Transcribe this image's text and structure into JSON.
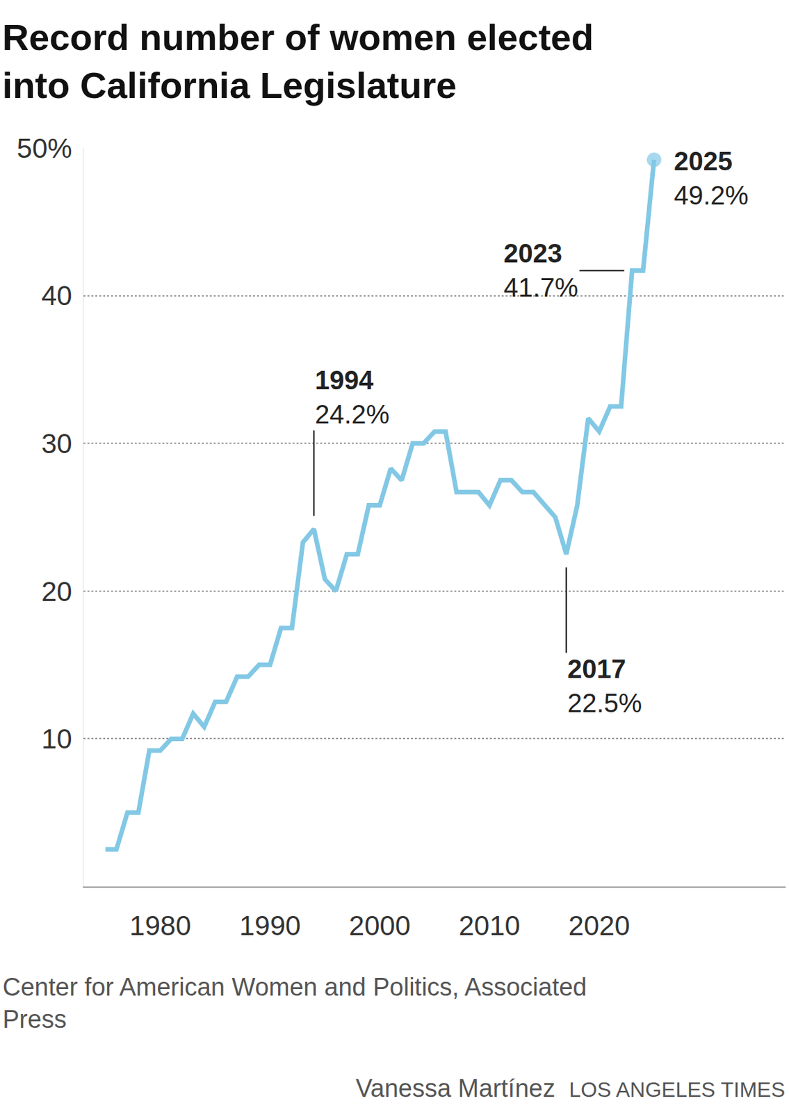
{
  "chart_data": {
    "type": "line",
    "title": "Record number of women elected\ninto California Legislature",
    "x": [
      1975,
      1976,
      1977,
      1978,
      1979,
      1980,
      1981,
      1982,
      1983,
      1984,
      1985,
      1986,
      1987,
      1988,
      1989,
      1990,
      1991,
      1992,
      1993,
      1994,
      1995,
      1996,
      1997,
      1998,
      1999,
      2000,
      2001,
      2002,
      2003,
      2004,
      2005,
      2006,
      2007,
      2008,
      2009,
      2010,
      2011,
      2012,
      2013,
      2014,
      2015,
      2016,
      2017,
      2018,
      2019,
      2020,
      2021,
      2022,
      2023,
      2024,
      2025
    ],
    "values": [
      2.5,
      2.5,
      5.0,
      5.0,
      9.2,
      9.2,
      10.0,
      10.0,
      11.7,
      10.8,
      12.5,
      12.5,
      14.2,
      14.2,
      15.0,
      15.0,
      17.5,
      17.5,
      23.3,
      24.2,
      20.8,
      20.0,
      22.5,
      22.5,
      25.8,
      25.8,
      28.3,
      27.5,
      30.0,
      30.0,
      30.8,
      30.8,
      26.7,
      26.7,
      26.7,
      25.8,
      27.5,
      27.5,
      26.7,
      26.7,
      25.8,
      25.0,
      22.5,
      25.8,
      31.7,
      30.8,
      32.5,
      32.5,
      41.7,
      41.7,
      49.2
    ],
    "color": "#82c8e5",
    "marker": "circle",
    "xlim": [
      1973,
      2037
    ],
    "xticks": [
      1980,
      1990,
      2000,
      2010,
      2020
    ],
    "ylim": [
      0,
      50
    ],
    "yticks": [
      {
        "value": 10,
        "label": "10"
      },
      {
        "value": 20,
        "label": "20"
      },
      {
        "value": 30,
        "label": "30"
      },
      {
        "value": 40,
        "label": "40"
      },
      {
        "value": 50,
        "label": "50%"
      }
    ],
    "grid": true,
    "annotations": [
      {
        "x": 1994,
        "y": 24.2,
        "text": "1994",
        "value_label": "24.2%"
      },
      {
        "x": 2017,
        "y": 22.5,
        "text": "2017",
        "value_label": "22.5%"
      },
      {
        "x": 2023,
        "y": 41.7,
        "text": "2023",
        "value_label": "41.7%"
      },
      {
        "x": 2025,
        "y": 49.2,
        "text": "2025",
        "value_label": "49.2%"
      }
    ],
    "source": "Center for American Women and Politics, Associated\nPress",
    "credit": "Vanessa Martínez",
    "publisher": "LOS ANGELES TIMES"
  }
}
